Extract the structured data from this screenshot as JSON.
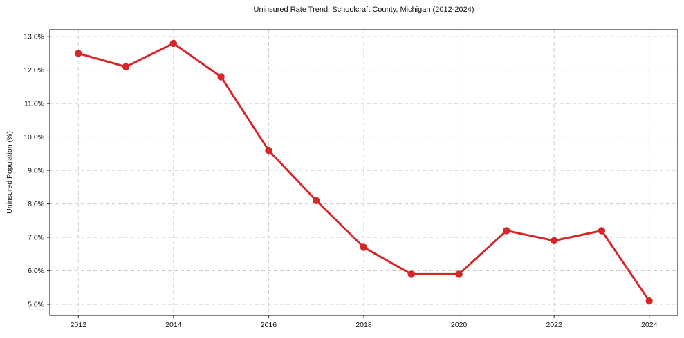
{
  "chart_data": {
    "type": "line",
    "title": "Uninsured Rate Trend: Schoolcraft County, Michigan (2012-2024)",
    "xlabel": "",
    "ylabel": "Uninsured Population (%)",
    "x": [
      2012,
      2013,
      2014,
      2015,
      2016,
      2017,
      2018,
      2019,
      2020,
      2021,
      2022,
      2023,
      2024
    ],
    "values": [
      12.5,
      12.1,
      12.8,
      11.8,
      9.6,
      8.1,
      6.7,
      5.9,
      5.9,
      7.2,
      6.9,
      7.2,
      5.1
    ],
    "xticks": [
      2012,
      2014,
      2016,
      2018,
      2020,
      2022,
      2024
    ],
    "xtick_labels": [
      "2012",
      "2014",
      "2016",
      "2018",
      "2020",
      "2022",
      "2024"
    ],
    "yticks": [
      5.0,
      6.0,
      7.0,
      8.0,
      9.0,
      10.0,
      11.0,
      12.0,
      13.0
    ],
    "ytick_labels": [
      "5.0%",
      "6.0%",
      "7.0%",
      "8.0%",
      "9.0%",
      "10.0%",
      "11.0%",
      "12.0%",
      "13.0%"
    ],
    "xlim": [
      2011.4,
      2024.6
    ],
    "ylim": [
      4.67,
      13.21
    ],
    "grid": true,
    "legend": "none",
    "line_color": "#d62728",
    "marker": "circle",
    "grid_color": "#cccccc",
    "spine_color": "#2b2b2b",
    "background_color": "#ffffff"
  }
}
